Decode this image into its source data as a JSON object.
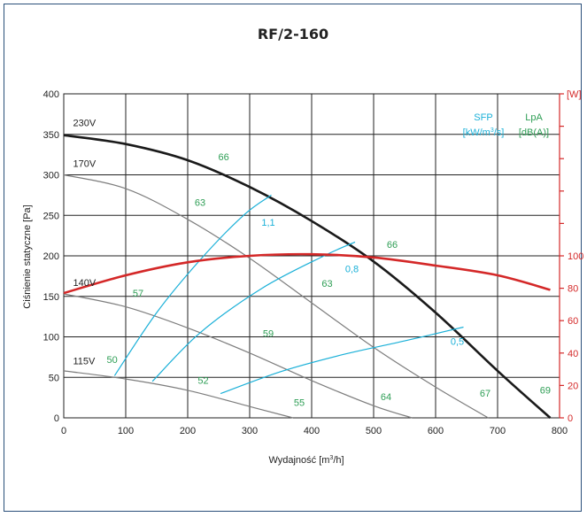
{
  "chart_data": {
    "type": "line",
    "title": "RF/2-160",
    "xlabel": "Wydajność [m3/h]",
    "xlabel_prefix": "Wydajność [m",
    "xlabel_sup": "3",
    "xlabel_suffix": "/h]",
    "ylabel": "Ciśnienie statyczne [Pa]",
    "y2label": "[W]",
    "xlim": [
      0,
      800
    ],
    "ylim": [
      0,
      400
    ],
    "y2lim": [
      0,
      200
    ],
    "x_ticks": [
      0,
      100,
      200,
      300,
      400,
      500,
      600,
      700,
      800
    ],
    "y_ticks": [
      0,
      50,
      100,
      150,
      200,
      250,
      300,
      350,
      400
    ],
    "y2_ticks": [
      0,
      20,
      40,
      60,
      80,
      100
    ],
    "grid": true,
    "legend_headers": {
      "sfp": "SFP",
      "sfp_unit_prefix": "[kW/m",
      "sfp_unit_sup": "3",
      "sfp_unit_suffix": "/s]",
      "lpa": "LpA",
      "lpa_unit": "[dB(A)]"
    },
    "fan_curves": [
      {
        "label": "230V",
        "label_x": 15,
        "label_y": 360,
        "x": [
          0,
          100,
          200,
          300,
          400,
          500,
          600,
          700,
          785
        ],
        "y": [
          349,
          338,
          318,
          285,
          243,
          193,
          130,
          58,
          0
        ]
      },
      {
        "label": "170V",
        "label_x": 15,
        "label_y": 310,
        "x": [
          0,
          100,
          200,
          300,
          400,
          500,
          600,
          685
        ],
        "y": [
          300,
          283,
          245,
          197,
          142,
          87,
          38,
          0
        ]
      },
      {
        "label": "140V",
        "label_x": 15,
        "label_y": 163,
        "x": [
          0,
          100,
          200,
          300,
          400,
          500,
          562
        ],
        "y": [
          153,
          137,
          111,
          80,
          46,
          15,
          0
        ]
      },
      {
        "label": "115V",
        "label_x": 15,
        "label_y": 66,
        "x": [
          0,
          100,
          200,
          300,
          370
        ],
        "y": [
          58,
          48,
          34,
          14,
          0
        ]
      }
    ],
    "power_curve": {
      "name": "[W]",
      "x": [
        0,
        100,
        200,
        300,
        400,
        500,
        600,
        700,
        785
      ],
      "y_w": [
        77,
        88,
        96,
        100,
        101,
        99,
        94,
        88,
        79
      ]
    },
    "sfp_curves": [
      {
        "label": "1,1",
        "label_x": 330,
        "label_y": 237,
        "x": [
          82,
          150,
          220,
          290,
          335
        ],
        "y": [
          52,
          130,
          195,
          250,
          275
        ]
      },
      {
        "label": "0,8",
        "label_x": 465,
        "label_y": 180,
        "x": [
          143,
          220,
          320,
          420,
          470
        ],
        "y": [
          45,
          105,
          160,
          200,
          217
        ]
      },
      {
        "label": "0,5",
        "label_x": 635,
        "label_y": 90,
        "x": [
          253,
          350,
          450,
          550,
          645
        ],
        "y": [
          30,
          57,
          78,
          95,
          112
        ]
      }
    ],
    "lpa_labels": [
      {
        "text": "66",
        "x": 258,
        "y": 318
      },
      {
        "text": "63",
        "x": 220,
        "y": 262
      },
      {
        "text": "66",
        "x": 530,
        "y": 210
      },
      {
        "text": "63",
        "x": 425,
        "y": 162
      },
      {
        "text": "57",
        "x": 120,
        "y": 150
      },
      {
        "text": "59",
        "x": 330,
        "y": 100
      },
      {
        "text": "50",
        "x": 78,
        "y": 68
      },
      {
        "text": "52",
        "x": 225,
        "y": 42
      },
      {
        "text": "55",
        "x": 380,
        "y": 15
      },
      {
        "text": "64",
        "x": 520,
        "y": 22
      },
      {
        "text": "67",
        "x": 680,
        "y": 26
      },
      {
        "text": "69",
        "x": 777,
        "y": 30
      }
    ]
  }
}
